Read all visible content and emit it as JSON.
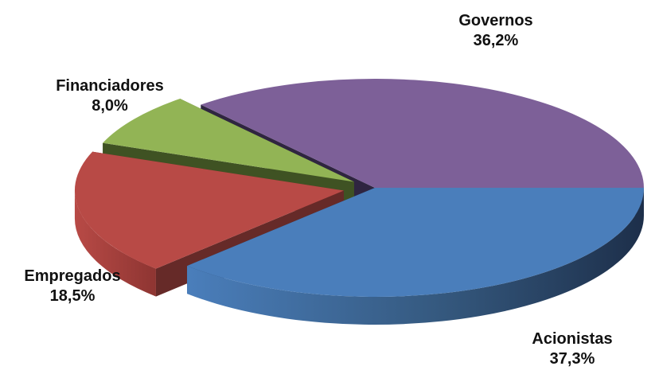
{
  "chart_data": {
    "type": "pie",
    "title": "",
    "slices": [
      {
        "name": "Acionistas",
        "value": 37.3,
        "label": "37,3%",
        "color": "#4a7ebb"
      },
      {
        "name": "Empregados",
        "value": 18.5,
        "label": "18,5%",
        "color": "#b84a46"
      },
      {
        "name": "Financiadores",
        "value": 8.0,
        "label": "8,0%",
        "color": "#92b455"
      },
      {
        "name": "Governos",
        "value": 36.2,
        "label": "36,2%",
        "color": "#7d6098"
      }
    ]
  }
}
